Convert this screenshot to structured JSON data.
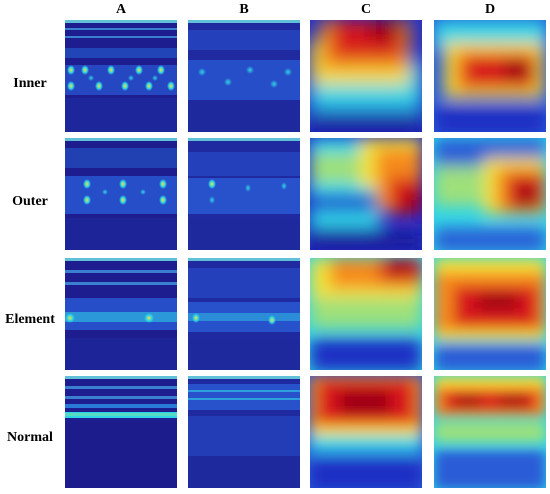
{
  "columns": [
    {
      "id": "A",
      "label": "A"
    },
    {
      "id": "B",
      "label": "B"
    },
    {
      "id": "C",
      "label": "C"
    },
    {
      "id": "D",
      "label": "D"
    }
  ],
  "rows": [
    {
      "id": "inner",
      "label": "Inner"
    },
    {
      "id": "outer",
      "label": "Outer"
    },
    {
      "id": "element",
      "label": "Element"
    },
    {
      "id": "normal",
      "label": "Normal"
    }
  ],
  "colors": {
    "deep_blue": "#1a1a9e",
    "blue": "#2a5bd7",
    "cyan": "#2fd5e6",
    "yellow": "#f3e23a",
    "orange": "#f58a1f",
    "red": "#d7191c",
    "dark_red": "#9e0016"
  }
}
